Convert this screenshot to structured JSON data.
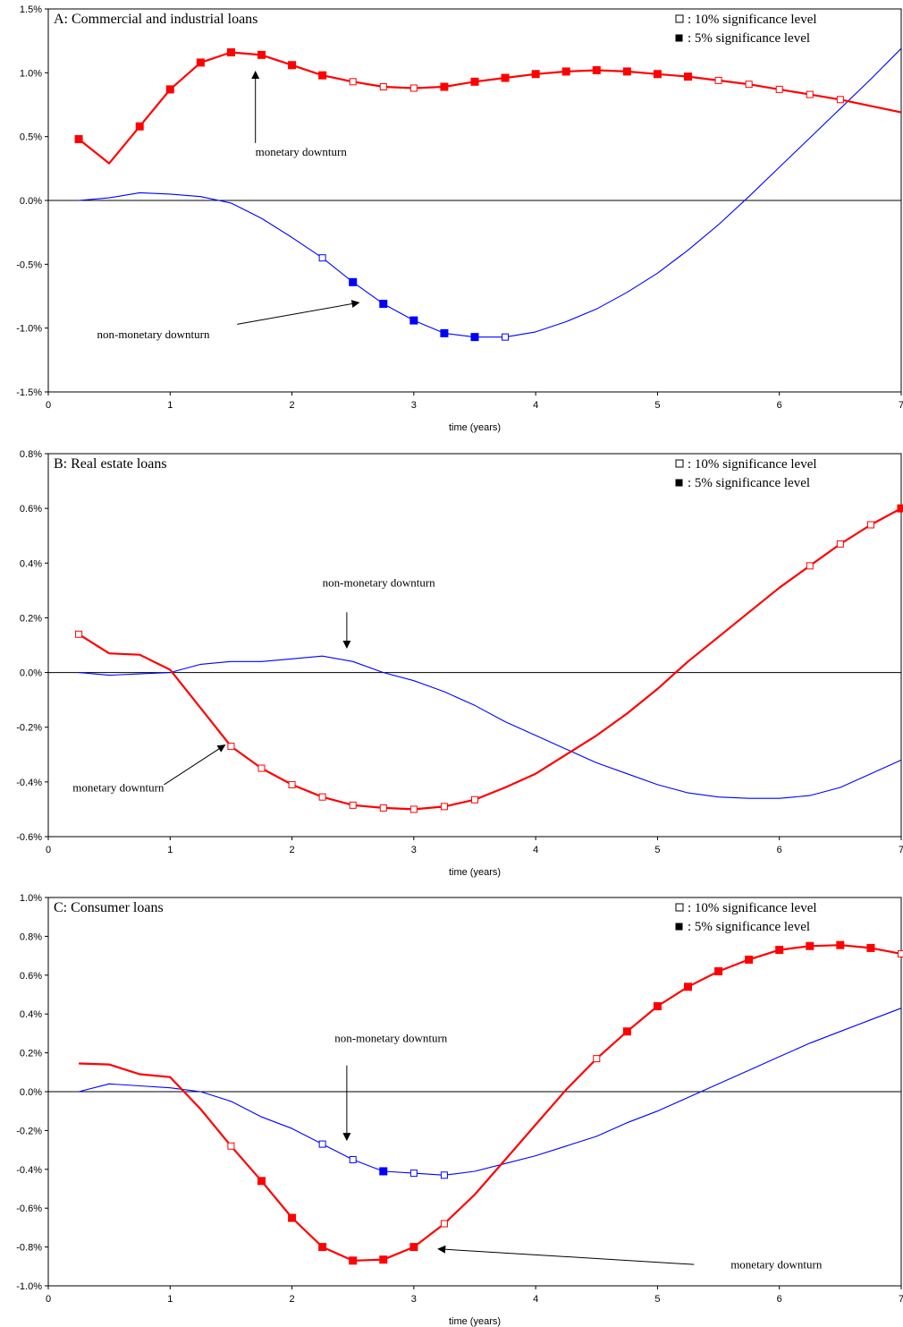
{
  "legend": {
    "open_marker_text": ": 10% significance level",
    "filled_marker_text": ":   5% significance level"
  },
  "colors": {
    "monetary": "#ff0000",
    "non_monetary": "#0000ff",
    "axis": "#000000"
  },
  "chart_data": [
    {
      "type": "line",
      "title": "A: Commercial and industrial loans",
      "xlabel": "time (years)",
      "xlim": [
        0,
        7
      ],
      "ylim": [
        -0.015,
        0.015
      ],
      "x_ticks": [
        "0",
        "1",
        "2",
        "3",
        "4",
        "5",
        "6",
        "7"
      ],
      "y_ticks": [
        {
          "v": 0.015,
          "label": "1.5%"
        },
        {
          "v": 0.01,
          "label": "1.0%"
        },
        {
          "v": 0.005,
          "label": "0.5%"
        },
        {
          "v": 0,
          "label": "0.0%"
        },
        {
          "v": -0.005,
          "label": "-0.5%"
        },
        {
          "v": -0.01,
          "label": "-1.0%"
        },
        {
          "v": -0.015,
          "label": "-1.5%"
        }
      ],
      "grid": false,
      "legend_position": "top-right",
      "series": [
        {
          "key": "monetary",
          "x": [
            0.25,
            0.5,
            0.75,
            1,
            1.25,
            1.5,
            1.75,
            2,
            2.25,
            2.5,
            2.75,
            3,
            3.25,
            3.5,
            3.75,
            4,
            4.25,
            4.5,
            4.75,
            5,
            5.25,
            5.5,
            5.75,
            6,
            6.25,
            6.5,
            6.75,
            7
          ],
          "y": [
            0.0048,
            0.0029,
            0.0058,
            0.0087,
            0.0108,
            0.0116,
            0.0114,
            0.0106,
            0.0098,
            0.0093,
            0.0089,
            0.0088,
            0.0089,
            0.0093,
            0.0096,
            0.0099,
            0.0101,
            0.0102,
            0.0101,
            0.0099,
            0.0097,
            0.0094,
            0.0091,
            0.0087,
            0.0083,
            0.0079,
            0.0074,
            0.0069
          ],
          "sig": [
            "f",
            "n",
            "f",
            "f",
            "f",
            "f",
            "f",
            "f",
            "f",
            "o",
            "o",
            "o",
            "f",
            "f",
            "f",
            "f",
            "f",
            "f",
            "f",
            "f",
            "f",
            "o",
            "o",
            "o",
            "o",
            "o",
            "n",
            "n"
          ]
        },
        {
          "key": "non_monetary",
          "x": [
            0.25,
            0.5,
            0.75,
            1,
            1.25,
            1.5,
            1.75,
            2,
            2.25,
            2.5,
            2.75,
            3,
            3.25,
            3.5,
            3.75,
            4,
            4.25,
            4.5,
            4.75,
            5,
            5.25,
            5.5,
            5.75,
            6,
            6.25,
            6.5,
            6.75,
            7
          ],
          "y": [
            0,
            0.0002,
            0.0006,
            0.0005,
            0.0003,
            -0.0002,
            -0.0014,
            -0.0029,
            -0.0045,
            -0.0064,
            -0.0081,
            -0.0094,
            -0.0104,
            -0.0107,
            -0.0107,
            -0.0103,
            -0.0095,
            -0.0085,
            -0.0072,
            -0.0057,
            -0.0039,
            -0.0019,
            0.0003,
            0.0026,
            0.0049,
            0.0072,
            0.0095,
            0.0119
          ],
          "sig": [
            "n",
            "n",
            "n",
            "n",
            "n",
            "n",
            "n",
            "n",
            "o",
            "f",
            "f",
            "f",
            "f",
            "f",
            "o",
            "n",
            "n",
            "n",
            "n",
            "n",
            "n",
            "n",
            "n",
            "n",
            "n",
            "n",
            "n",
            "n"
          ]
        }
      ],
      "annotations": [
        {
          "text": "monetary downturn",
          "anchor": [
            1.7,
            0.0035
          ],
          "arrow_to": [
            1.7,
            0.0102
          ]
        },
        {
          "text": "non-monetary downturn",
          "anchor": [
            0.4,
            -0.0108
          ],
          "arrow_to": [
            2.55,
            -0.0079
          ]
        }
      ]
    },
    {
      "type": "line",
      "title": "B: Real estate loans",
      "xlabel": "time (years)",
      "xlim": [
        0,
        7
      ],
      "ylim": [
        -0.006,
        0.008
      ],
      "x_ticks": [
        "0",
        "1",
        "2",
        "3",
        "4",
        "5",
        "6",
        "7"
      ],
      "y_ticks": [
        {
          "v": 0.008,
          "label": "0.8%"
        },
        {
          "v": 0.006,
          "label": "0.6%"
        },
        {
          "v": 0.004,
          "label": "0.4%"
        },
        {
          "v": 0.002,
          "label": "0.2%"
        },
        {
          "v": 0,
          "label": "0.0%"
        },
        {
          "v": -0.002,
          "label": "-0.2%"
        },
        {
          "v": -0.004,
          "label": "-0.4%"
        },
        {
          "v": -0.006,
          "label": "-0.6%"
        }
      ],
      "grid": false,
      "legend_position": "top-right",
      "series": [
        {
          "key": "monetary",
          "x": [
            0.25,
            0.5,
            0.75,
            1,
            1.25,
            1.5,
            1.75,
            2,
            2.25,
            2.5,
            2.75,
            3,
            3.25,
            3.5,
            3.75,
            4,
            4.25,
            4.5,
            4.75,
            5,
            5.25,
            5.5,
            5.75,
            6,
            6.25,
            6.5,
            6.75,
            7
          ],
          "y": [
            0.0014,
            0.0007,
            0.00065,
            0.0001,
            -0.0013,
            -0.0027,
            -0.0035,
            -0.0041,
            -0.00455,
            -0.00485,
            -0.00495,
            -0.005,
            -0.0049,
            -0.00465,
            -0.0042,
            -0.0037,
            -0.003,
            -0.0023,
            -0.0015,
            -0.0006,
            0.0004,
            0.0013,
            0.0022,
            0.0031,
            0.0039,
            0.0047,
            0.0054,
            0.006
          ],
          "sig": [
            "o",
            "n",
            "n",
            "n",
            "n",
            "o",
            "o",
            "o",
            "o",
            "o",
            "o",
            "o",
            "o",
            "o",
            "n",
            "n",
            "n",
            "n",
            "n",
            "n",
            "n",
            "n",
            "n",
            "n",
            "o",
            "o",
            "o",
            "f"
          ]
        },
        {
          "key": "non_monetary",
          "x": [
            0.25,
            0.5,
            0.75,
            1,
            1.25,
            1.5,
            1.75,
            2,
            2.25,
            2.5,
            2.75,
            3,
            3.25,
            3.5,
            3.75,
            4,
            4.25,
            4.5,
            4.75,
            5,
            5.25,
            5.5,
            5.75,
            6,
            6.25,
            6.5,
            6.75,
            7
          ],
          "y": [
            0,
            -0.0001,
            -5e-05,
            0,
            0.0003,
            0.0004,
            0.0004,
            0.0005,
            0.0006,
            0.0004,
            0,
            -0.0003,
            -0.0007,
            -0.0012,
            -0.0018,
            -0.0023,
            -0.0028,
            -0.0033,
            -0.0037,
            -0.0041,
            -0.0044,
            -0.00455,
            -0.0046,
            -0.0046,
            -0.0045,
            -0.0042,
            -0.0037,
            -0.0032
          ],
          "sig": [
            "n",
            "n",
            "n",
            "n",
            "n",
            "n",
            "n",
            "n",
            "n",
            "n",
            "n",
            "n",
            "n",
            "n",
            "n",
            "n",
            "n",
            "n",
            "n",
            "n",
            "n",
            "n",
            "n",
            "n",
            "n",
            "n",
            "n",
            "n"
          ]
        }
      ],
      "annotations": [
        {
          "text": "non-monetary downturn",
          "anchor": [
            2.25,
            0.00315
          ],
          "arrow_to": [
            2.45,
            0.0009
          ]
        },
        {
          "text": "monetary downturn",
          "anchor": [
            0.2,
            -0.00435
          ],
          "arrow_to": [
            1.45,
            -0.00265
          ]
        }
      ]
    },
    {
      "type": "line",
      "title": "C: Consumer loans",
      "xlabel": "time (years)",
      "xlim": [
        0,
        7
      ],
      "ylim": [
        -0.01,
        0.01
      ],
      "x_ticks": [
        "0",
        "1",
        "2",
        "3",
        "4",
        "5",
        "6",
        "7"
      ],
      "y_ticks": [
        {
          "v": 0.01,
          "label": "1.0%"
        },
        {
          "v": 0.008,
          "label": "0.8%"
        },
        {
          "v": 0.006,
          "label": "0.6%"
        },
        {
          "v": 0.004,
          "label": "0.4%"
        },
        {
          "v": 0.002,
          "label": "0.2%"
        },
        {
          "v": 0,
          "label": "0.0%"
        },
        {
          "v": -0.002,
          "label": "-0.2%"
        },
        {
          "v": -0.004,
          "label": "-0.4%"
        },
        {
          "v": -0.006,
          "label": "-0.6%"
        },
        {
          "v": -0.008,
          "label": "-0.8%"
        },
        {
          "v": -0.01,
          "label": "-1.0%"
        }
      ],
      "grid": false,
      "legend_position": "top-right",
      "series": [
        {
          "key": "monetary",
          "x": [
            0.25,
            0.5,
            0.75,
            1,
            1.25,
            1.5,
            1.75,
            2,
            2.25,
            2.5,
            2.75,
            3,
            3.25,
            3.5,
            3.75,
            4,
            4.25,
            4.5,
            4.75,
            5,
            5.25,
            5.5,
            5.75,
            6,
            6.25,
            6.5,
            6.75,
            7
          ],
          "y": [
            0.00145,
            0.0014,
            0.0009,
            0.00075,
            -0.0009,
            -0.0028,
            -0.0046,
            -0.0065,
            -0.008,
            -0.0087,
            -0.00865,
            -0.008,
            -0.0068,
            -0.0053,
            -0.0035,
            -0.0017,
            0.0001,
            0.0017,
            0.0031,
            0.0044,
            0.0054,
            0.0062,
            0.0068,
            0.0073,
            0.0075,
            0.00755,
            0.0074,
            0.0071
          ],
          "sig": [
            "n",
            "n",
            "n",
            "n",
            "n",
            "o",
            "f",
            "f",
            "f",
            "f",
            "f",
            "f",
            "o",
            "n",
            "n",
            "n",
            "n",
            "o",
            "f",
            "f",
            "f",
            "f",
            "f",
            "f",
            "f",
            "f",
            "f",
            "o"
          ]
        },
        {
          "key": "non_monetary",
          "x": [
            0.25,
            0.5,
            0.75,
            1,
            1.25,
            1.5,
            1.75,
            2,
            2.25,
            2.5,
            2.75,
            3,
            3.25,
            3.5,
            3.75,
            4,
            4.25,
            4.5,
            4.75,
            5,
            5.25,
            5.5,
            5.75,
            6,
            6.25,
            6.5,
            6.75,
            7
          ],
          "y": [
            0,
            0.0004,
            0.0003,
            0.0002,
            0,
            -0.0005,
            -0.0013,
            -0.0019,
            -0.0027,
            -0.0035,
            -0.0041,
            -0.0042,
            -0.0043,
            -0.0041,
            -0.0037,
            -0.0033,
            -0.0028,
            -0.0023,
            -0.0016,
            -0.001,
            -0.0003,
            0.0004,
            0.0011,
            0.0018,
            0.0025,
            0.0031,
            0.0037,
            0.0043
          ],
          "sig": [
            "n",
            "n",
            "n",
            "n",
            "n",
            "n",
            "n",
            "n",
            "o",
            "o",
            "f",
            "o",
            "o",
            "n",
            "n",
            "n",
            "n",
            "n",
            "n",
            "n",
            "n",
            "n",
            "n",
            "n",
            "n",
            "n",
            "n",
            "n"
          ]
        }
      ],
      "annotations": [
        {
          "text": "non-monetary downturn",
          "anchor": [
            2.35,
            0.00255
          ],
          "arrow_to": [
            2.35,
            -0.00255
          ]
        },
        {
          "text": "monetary downturn",
          "anchor": [
            5.6,
            -0.0091
          ],
          "arrow_to": [
            3.2,
            -0.0081
          ]
        }
      ]
    }
  ]
}
